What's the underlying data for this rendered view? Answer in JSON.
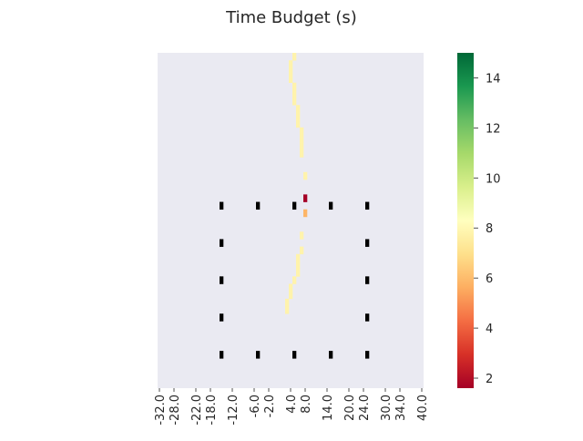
{
  "chart_data": {
    "type": "heatmap",
    "title": "Time Budget (s)",
    "xlabel": "",
    "ylabel": "",
    "x_tick_labels": [
      "-32.0",
      "-28.0",
      "-22.0",
      "-18.0",
      "-12.0",
      "-6.0",
      "-2.0",
      "4.0",
      "8.0",
      "14.0",
      "20.0",
      "24.0",
      "30.0",
      "34.0",
      "40.0"
    ],
    "x_tick_values": [
      -32,
      -28,
      -22,
      -18,
      -12,
      -6,
      -2,
      4,
      8,
      14,
      20,
      24,
      30,
      34,
      40
    ],
    "x_range": [
      -32,
      41
    ],
    "y_cells": 45,
    "colorbar": {
      "colormap": "RdYlGn",
      "range": [
        1.6,
        15
      ],
      "ticks": [
        2,
        4,
        6,
        8,
        10,
        12,
        14
      ],
      "tick_labels": [
        "2",
        "4",
        "6",
        "8",
        "10",
        "12",
        "14"
      ]
    },
    "background_color": "#eaeaf2",
    "obstacle_color": "#000000",
    "path_cells": [
      {
        "x": 5,
        "row": 0,
        "value": 7.8
      },
      {
        "x": 4,
        "row": 1,
        "value": 7.8
      },
      {
        "x": 4,
        "row": 2,
        "value": 7.8
      },
      {
        "x": 4,
        "row": 3,
        "value": 7.8
      },
      {
        "x": 5,
        "row": 4,
        "value": 7.8
      },
      {
        "x": 5,
        "row": 5,
        "value": 7.8
      },
      {
        "x": 5,
        "row": 6,
        "value": 7.8
      },
      {
        "x": 6,
        "row": 7,
        "value": 7.8
      },
      {
        "x": 6,
        "row": 8,
        "value": 7.8
      },
      {
        "x": 6,
        "row": 9,
        "value": 7.8
      },
      {
        "x": 7,
        "row": 10,
        "value": 7.8
      },
      {
        "x": 7,
        "row": 11,
        "value": 7.8
      },
      {
        "x": 7,
        "row": 12,
        "value": 7.8
      },
      {
        "x": 7,
        "row": 13,
        "value": 7.8
      },
      {
        "x": 8,
        "row": 16,
        "value": 7.8
      },
      {
        "x": 8,
        "row": 19,
        "value": 1.6
      },
      {
        "x": 8,
        "row": 21,
        "value": 5.8
      },
      {
        "x": 7,
        "row": 24,
        "value": 7.8
      },
      {
        "x": 7,
        "row": 26,
        "value": 7.8
      },
      {
        "x": 6,
        "row": 27,
        "value": 7.8
      },
      {
        "x": 6,
        "row": 28,
        "value": 7.8
      },
      {
        "x": 6,
        "row": 29,
        "value": 7.8
      },
      {
        "x": 5,
        "row": 30,
        "value": 7.8
      },
      {
        "x": 4,
        "row": 31,
        "value": 7.8
      },
      {
        "x": 4,
        "row": 32,
        "value": 7.8
      },
      {
        "x": 3,
        "row": 33,
        "value": 7.8
      },
      {
        "x": 3,
        "row": 34,
        "value": 7.8
      }
    ],
    "obstacle_cells": [
      {
        "x": -15,
        "row": 20
      },
      {
        "x": -5,
        "row": 20
      },
      {
        "x": 5,
        "row": 20
      },
      {
        "x": 15,
        "row": 20
      },
      {
        "x": 25,
        "row": 20
      },
      {
        "x": -15,
        "row": 25
      },
      {
        "x": 25,
        "row": 25
      },
      {
        "x": -15,
        "row": 30
      },
      {
        "x": 25,
        "row": 30
      },
      {
        "x": -15,
        "row": 35
      },
      {
        "x": 25,
        "row": 35
      },
      {
        "x": -15,
        "row": 40
      },
      {
        "x": -5,
        "row": 40
      },
      {
        "x": 5,
        "row": 40
      },
      {
        "x": 15,
        "row": 40
      },
      {
        "x": 25,
        "row": 40
      }
    ]
  }
}
